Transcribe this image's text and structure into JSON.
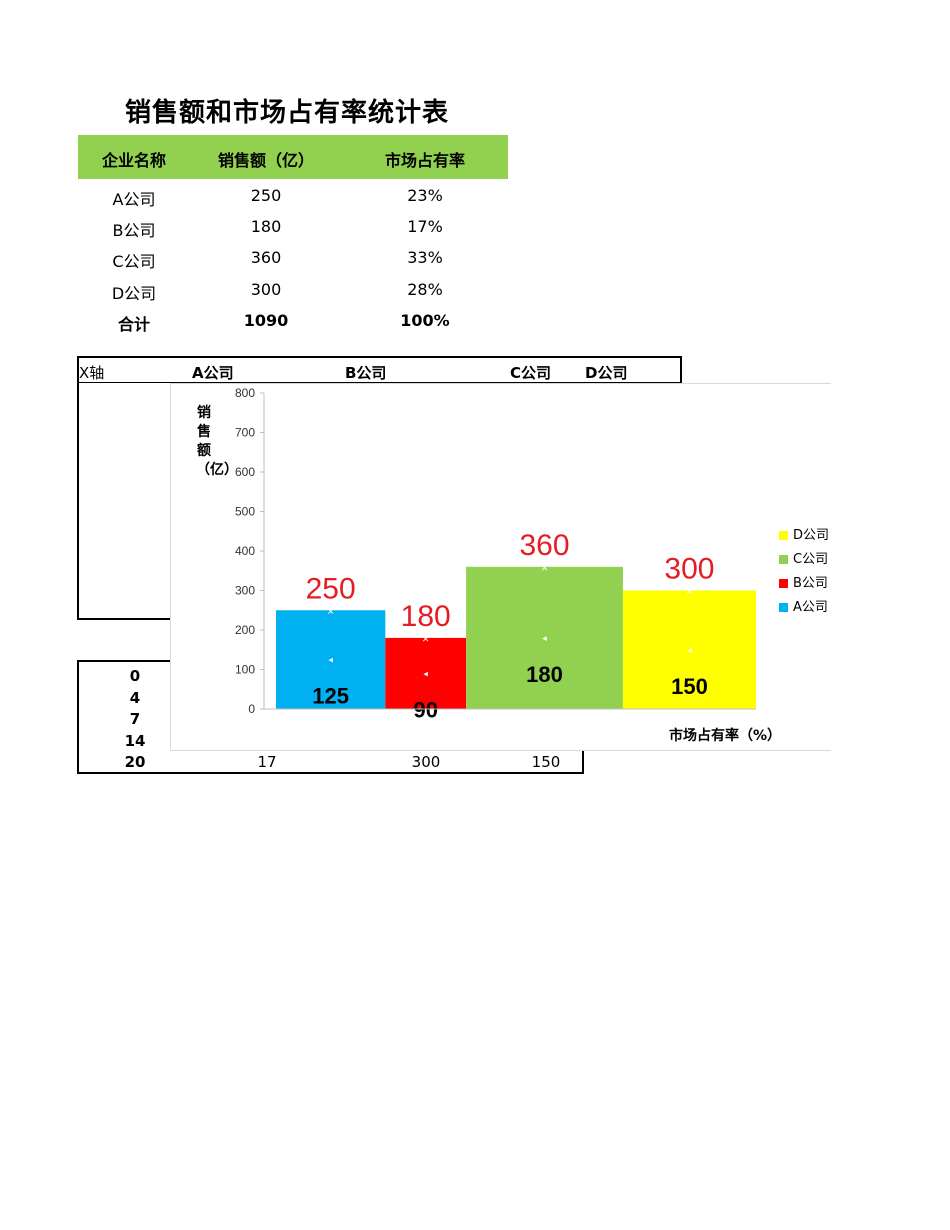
{
  "title": "销售额和市场占有率统计表",
  "summary_table": {
    "headers": [
      "企业名称",
      "销售额（亿）",
      "市场占有率"
    ],
    "header_color": "#92d050",
    "rows": [
      [
        "A公司",
        "250",
        "23%"
      ],
      [
        "B公司",
        "180",
        "17%"
      ],
      [
        "C公司",
        "360",
        "33%"
      ],
      [
        "D公司",
        "300",
        "28%"
      ]
    ],
    "total": [
      "合计",
      "1090",
      "100%"
    ]
  },
  "x_axis_table": {
    "corner": "X轴",
    "labels": [
      "A公司",
      "B公司",
      "C公司",
      "D公司"
    ]
  },
  "y_table": {
    "first_col": [
      "0",
      "4",
      "7",
      "14",
      "20"
    ],
    "last_row": [
      "17",
      "300",
      "150"
    ]
  },
  "chart_data": {
    "type": "bar",
    "subtype": "variable-width (marimekko)",
    "categories": [
      "A公司",
      "B公司",
      "C公司",
      "D公司"
    ],
    "widths_percent": [
      23,
      17,
      33,
      28
    ],
    "values": [
      250,
      180,
      360,
      300
    ],
    "midpoint_labels": [
      "125",
      "90",
      "180",
      "150"
    ],
    "colors": [
      "#00b0f0",
      "#ff0000",
      "#92d050",
      "#ffff00"
    ],
    "value_label_color": "#e51c23",
    "ylabel": "销售额（亿）",
    "xlabel": "市场占有率（%）",
    "ylim": [
      0,
      800
    ],
    "yticks": [
      "0",
      "100",
      "200",
      "300",
      "400",
      "500",
      "600",
      "700",
      "800"
    ],
    "legend": [
      "D公司",
      "C公司",
      "B公司",
      "A公司"
    ],
    "legend_position": "right",
    "grid": false
  }
}
